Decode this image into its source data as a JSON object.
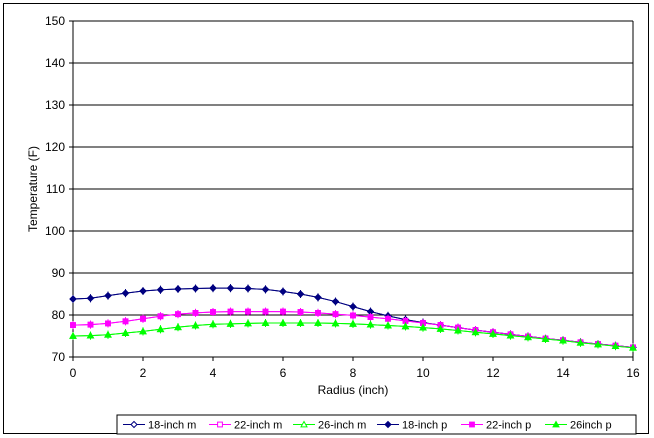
{
  "chart_data": {
    "type": "line",
    "title": "",
    "xlabel": "Radius (inch)",
    "ylabel": "Temperature (F)",
    "xlim": [
      0,
      16
    ],
    "ylim": [
      70,
      150
    ],
    "xticks": [
      0,
      2,
      4,
      6,
      8,
      10,
      12,
      14,
      16
    ],
    "yticks": [
      70,
      80,
      90,
      100,
      110,
      120,
      130,
      140,
      150
    ],
    "grid": "horizontal",
    "legend_position": "bottom",
    "x": [
      0,
      0.5,
      1,
      1.5,
      2,
      2.5,
      3,
      3.5,
      4,
      4.5,
      5,
      5.5,
      6,
      6.5,
      7,
      7.5,
      8,
      8.5,
      9,
      9.5,
      10,
      10.5,
      11,
      11.5,
      12,
      12.5,
      13,
      13.5,
      14,
      14.5,
      15,
      15.5,
      16
    ],
    "series": [
      {
        "name": "18-inch m",
        "color": "#000080",
        "marker": "diamond-open",
        "values": [
          83.8,
          84.0,
          84.6,
          85.2,
          85.7,
          86.0,
          86.2,
          86.3,
          86.4,
          86.4,
          86.3,
          86.1,
          85.6,
          85.0,
          84.2,
          83.2,
          82.0,
          80.8,
          79.8,
          78.9,
          78.2,
          77.6,
          77.0,
          76.4,
          75.9,
          75.4,
          74.9,
          74.4,
          74.0,
          73.5,
          73.1,
          72.7,
          72.3
        ]
      },
      {
        "name": "22-inch m",
        "color": "#FF00FF",
        "marker": "square-open",
        "values": [
          77.6,
          77.7,
          78.0,
          78.5,
          79.1,
          79.7,
          80.2,
          80.5,
          80.7,
          80.8,
          80.8,
          80.8,
          80.8,
          80.7,
          80.5,
          80.2,
          79.9,
          79.5,
          79.1,
          78.6,
          78.1,
          77.6,
          77.0,
          76.4,
          75.9,
          75.4,
          74.9,
          74.4,
          74.0,
          73.5,
          73.1,
          72.7,
          72.3
        ]
      },
      {
        "name": "26-inch m",
        "color": "#00FF00",
        "marker": "triangle-open",
        "values": [
          75.0,
          75.1,
          75.3,
          75.7,
          76.1,
          76.6,
          77.1,
          77.5,
          77.8,
          77.9,
          78.0,
          78.1,
          78.1,
          78.1,
          78.1,
          78.0,
          77.9,
          77.7,
          77.5,
          77.3,
          77.0,
          76.7,
          76.3,
          75.9,
          75.5,
          75.1,
          74.7,
          74.3,
          73.9,
          73.4,
          73.0,
          72.6,
          72.2
        ]
      },
      {
        "name": "18-inch p",
        "color": "#000080",
        "marker": "diamond",
        "values": [
          83.8,
          84.0,
          84.6,
          85.2,
          85.7,
          86.0,
          86.2,
          86.3,
          86.4,
          86.4,
          86.3,
          86.1,
          85.6,
          85.0,
          84.2,
          83.2,
          82.0,
          80.8,
          79.8,
          78.9,
          78.2,
          77.6,
          77.0,
          76.4,
          75.9,
          75.4,
          74.9,
          74.4,
          74.0,
          73.5,
          73.1,
          72.7,
          72.3
        ]
      },
      {
        "name": "22-inch p",
        "color": "#FF00FF",
        "marker": "square",
        "values": [
          77.6,
          77.7,
          78.0,
          78.5,
          79.1,
          79.7,
          80.2,
          80.5,
          80.7,
          80.8,
          80.8,
          80.8,
          80.8,
          80.7,
          80.5,
          80.2,
          79.9,
          79.5,
          79.1,
          78.6,
          78.1,
          77.6,
          77.0,
          76.4,
          75.9,
          75.4,
          74.9,
          74.4,
          74.0,
          73.5,
          73.1,
          72.7,
          72.3
        ]
      },
      {
        "name": "26inch p",
        "color": "#00FF00",
        "marker": "triangle",
        "values": [
          75.0,
          75.1,
          75.3,
          75.7,
          76.1,
          76.6,
          77.1,
          77.5,
          77.8,
          77.9,
          78.0,
          78.1,
          78.1,
          78.1,
          78.1,
          78.0,
          77.9,
          77.7,
          77.5,
          77.3,
          77.0,
          76.7,
          76.3,
          75.9,
          75.5,
          75.1,
          74.7,
          74.3,
          73.9,
          73.4,
          73.0,
          72.6,
          72.2
        ]
      }
    ]
  }
}
